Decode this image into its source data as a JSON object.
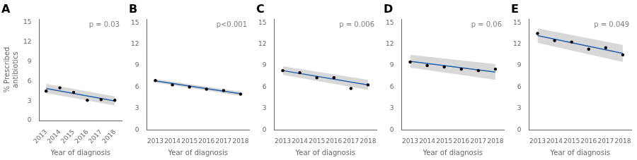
{
  "chart_data": [
    {
      "type": "scatter",
      "title": "A",
      "annotation": "p = 0.03",
      "xlabel": "Year of diagnosis",
      "ylabel": "% Prescribed\nantibiotics",
      "xlim": [
        2012.5,
        2018.5
      ],
      "xticks": [
        2013,
        2014,
        2015,
        2016,
        2017,
        2018
      ],
      "ylim": [
        0,
        15.5
      ],
      "yticks": [
        0,
        3,
        6,
        9,
        12,
        15
      ],
      "grid": false,
      "series": [
        {
          "type": "area",
          "color": "#b8b8b8",
          "x": [
            2013,
            2018
          ],
          "lower": [
            4.2,
            2.3
          ],
          "upper": [
            5.6,
            3.7
          ]
        },
        {
          "type": "line",
          "color": "#2060b0",
          "x": [
            2013,
            2018
          ],
          "values": [
            4.9,
            3.0
          ]
        },
        {
          "type": "scatter",
          "color": "black",
          "x": [
            2013,
            2014,
            2015,
            2016,
            2017,
            2018
          ],
          "values": [
            4.5,
            5.0,
            4.3,
            3.1,
            3.2,
            3.1
          ]
        }
      ]
    },
    {
      "type": "scatter",
      "title": "B",
      "annotation": "p<0.001",
      "xlabel": "Year of diagnosis",
      "xlim": [
        2012.5,
        2018.5
      ],
      "xticks": [
        2013,
        2014,
        2015,
        2016,
        2017,
        2018
      ],
      "ylim": [
        0,
        15.5
      ],
      "yticks": [
        0,
        3,
        6,
        9,
        12,
        15
      ],
      "grid": false,
      "series": [
        {
          "type": "area",
          "color": "#b8b8b8",
          "x": [
            2013,
            2018
          ],
          "lower": [
            6.6,
            4.75
          ],
          "upper": [
            7.1,
            5.35
          ]
        },
        {
          "type": "line",
          "color": "#2060b0",
          "x": [
            2013,
            2018
          ],
          "values": [
            6.85,
            5.05
          ]
        },
        {
          "type": "scatter",
          "color": "black",
          "x": [
            2013,
            2014,
            2015,
            2016,
            2017,
            2018
          ],
          "values": [
            6.9,
            6.3,
            6.0,
            5.7,
            5.5,
            5.0
          ]
        }
      ]
    },
    {
      "type": "scatter",
      "title": "C",
      "annotation": "p = 0.006",
      "xlabel": "Year of diagnosis",
      "xlim": [
        2012.5,
        2018.5
      ],
      "xticks": [
        2013,
        2014,
        2015,
        2016,
        2017,
        2018
      ],
      "ylim": [
        0,
        15.5
      ],
      "yticks": [
        0,
        3,
        6,
        9,
        12,
        15
      ],
      "grid": false,
      "series": [
        {
          "type": "area",
          "color": "#b8b8b8",
          "x": [
            2013,
            2018
          ],
          "lower": [
            7.7,
            5.6
          ],
          "upper": [
            8.9,
            7.0
          ]
        },
        {
          "type": "line",
          "color": "#2060b0",
          "x": [
            2013,
            2018
          ],
          "values": [
            8.3,
            6.3
          ]
        },
        {
          "type": "scatter",
          "color": "black",
          "x": [
            2013,
            2014,
            2015,
            2016,
            2017,
            2018
          ],
          "values": [
            8.3,
            8.0,
            7.3,
            7.3,
            5.8,
            6.3
          ]
        }
      ]
    },
    {
      "type": "scatter",
      "title": "D",
      "annotation": "p = 0.06",
      "xlabel": "Year of diagnosis",
      "xlim": [
        2012.5,
        2018.5
      ],
      "xticks": [
        2013,
        2014,
        2015,
        2016,
        2017,
        2018
      ],
      "ylim": [
        0,
        15.5
      ],
      "yticks": [
        0,
        3,
        6,
        9,
        12,
        15
      ],
      "grid": false,
      "series": [
        {
          "type": "area",
          "color": "#b8b8b8",
          "x": [
            2013,
            2018
          ],
          "lower": [
            8.7,
            7.0
          ],
          "upper": [
            10.5,
            9.2
          ]
        },
        {
          "type": "line",
          "color": "#2060b0",
          "x": [
            2013,
            2018
          ],
          "values": [
            9.6,
            8.1
          ]
        },
        {
          "type": "scatter",
          "color": "black",
          "x": [
            2013,
            2014,
            2015,
            2016,
            2017,
            2018
          ],
          "values": [
            9.5,
            9.0,
            8.8,
            8.5,
            8.3,
            8.5
          ]
        }
      ]
    },
    {
      "type": "scatter",
      "title": "E",
      "annotation": "p = 0.049",
      "xlabel": "Year of diagnosis",
      "xlim": [
        2012.5,
        2018.5
      ],
      "xticks": [
        2013,
        2014,
        2015,
        2016,
        2017,
        2018
      ],
      "ylim": [
        0,
        15.5
      ],
      "yticks": [
        0,
        3,
        6,
        9,
        12,
        15
      ],
      "grid": false,
      "series": [
        {
          "type": "area",
          "color": "#b8b8b8",
          "x": [
            2013,
            2018
          ],
          "lower": [
            12.2,
            9.5
          ],
          "upper": [
            14.2,
            11.9
          ]
        },
        {
          "type": "line",
          "color": "#2060b0",
          "x": [
            2013,
            2018
          ],
          "values": [
            13.2,
            10.7
          ]
        },
        {
          "type": "scatter",
          "color": "black",
          "x": [
            2013,
            2014,
            2015,
            2016,
            2017,
            2018
          ],
          "values": [
            13.5,
            12.5,
            12.3,
            11.3,
            11.5,
            10.5
          ]
        }
      ]
    }
  ]
}
